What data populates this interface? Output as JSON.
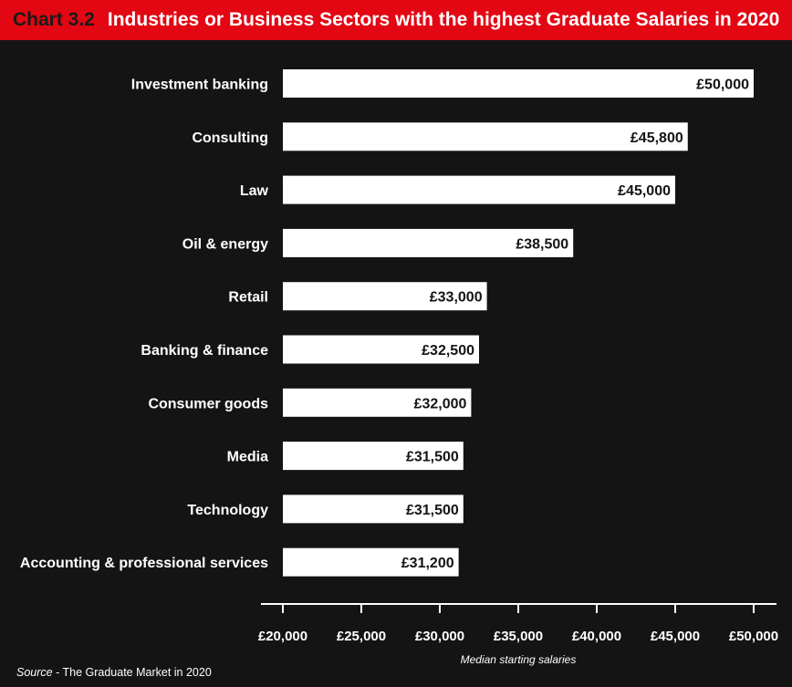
{
  "header": {
    "chart_number": "Chart 3.2",
    "title": "Industries or Business Sectors with the highest Graduate Salaries in 2020"
  },
  "source": {
    "label": "Source",
    "text": " - The Graduate Market in 2020"
  },
  "colors": {
    "header_background": "#e30613",
    "background": "#141414",
    "bar": "#ffffff",
    "bar_label": "#141414"
  },
  "chart_data": {
    "type": "bar",
    "orientation": "horizontal",
    "categories": [
      "Investment banking",
      "Consulting",
      "Law",
      "Oil & energy",
      "Retail",
      "Banking & finance",
      "Consumer goods",
      "Media",
      "Technology",
      "Accounting & professional services"
    ],
    "values": [
      50000,
      45800,
      45000,
      38500,
      33000,
      32500,
      32000,
      31500,
      31500,
      31200
    ],
    "value_labels": [
      "£50,000",
      "£45,800",
      "£45,000",
      "£38,500",
      "£33,000",
      "£32,500",
      "£32,000",
      "£31,500",
      "£31,500",
      "£31,200"
    ],
    "xlabel": "Median starting salaries",
    "xlim": [
      20000,
      50000
    ],
    "xticks": [
      20000,
      25000,
      30000,
      35000,
      40000,
      45000,
      50000
    ],
    "xtick_labels": [
      "£20,000",
      "£25,000",
      "£30,000",
      "£35,000",
      "£40,000",
      "£45,000",
      "£50,000"
    ],
    "grid": false,
    "legend": "none"
  }
}
